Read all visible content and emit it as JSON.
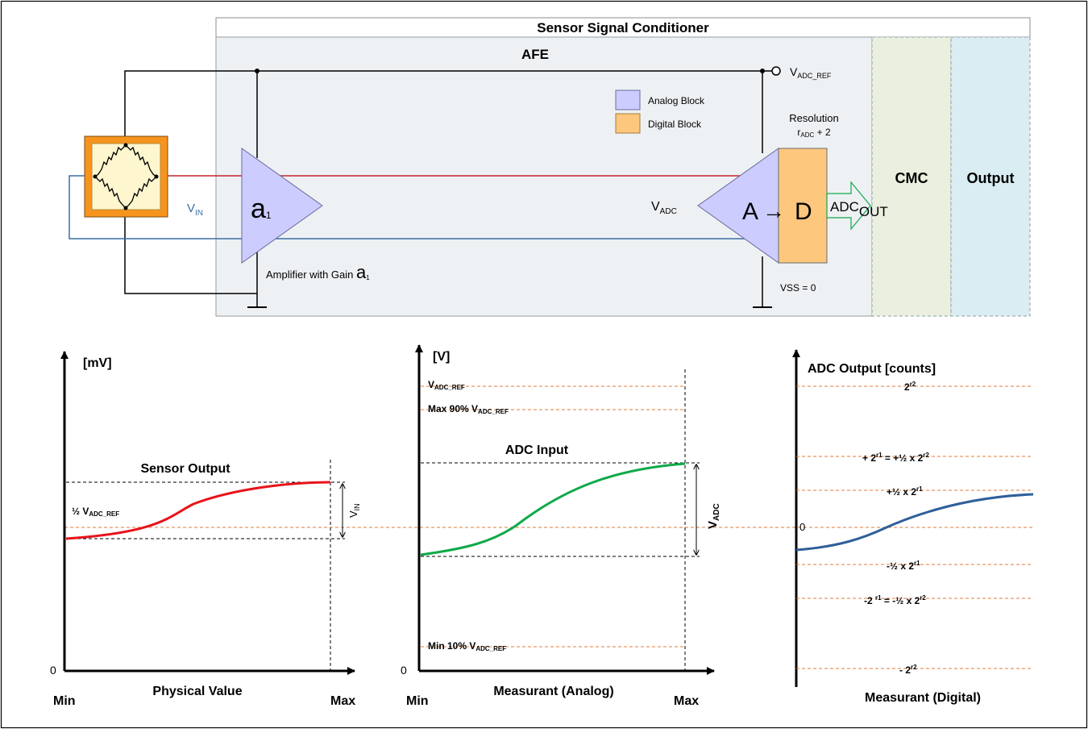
{
  "block_diagram": {
    "title": "Sensor Signal Conditioner",
    "afe_label": "AFE",
    "cmc_label": "CMC",
    "output_label": "Output",
    "vref": {
      "main": "V",
      "sub": "ADC_REF"
    },
    "legend": [
      {
        "label": "Analog Block",
        "color": "#ccccff"
      },
      {
        "label": "Digital Block",
        "color": "#fdc77e"
      }
    ],
    "resolution": {
      "line1": "Resolution",
      "r": "r",
      "sub": "ADC",
      "tail": " + 2"
    },
    "vin": {
      "main": "V",
      "sub": "IN"
    },
    "amp": {
      "main": "a",
      "sub": "1"
    },
    "amp_caption": {
      "text": "Amplifier with Gain ",
      "main": "a",
      "sub": "1"
    },
    "vadc": {
      "main": "V",
      "sub": "ADC"
    },
    "adc": {
      "a": "A",
      "arrow": "→",
      "d": "D"
    },
    "adc_out": {
      "main": "ADC",
      "sub": "OUT"
    },
    "vss": "VSS = 0"
  },
  "colors": {
    "analog": "#ccccff",
    "digital": "#fdc77e",
    "afe_bg": "#eef1f4",
    "cmc_bg": "#ebefdf",
    "output_bg": "#d9edf2",
    "sensor_orange": "#f7941d",
    "red_wire": "#c0262c",
    "blue_wire": "#3b6ea5",
    "sensor_curve": "#e8131b",
    "adc_curve": "#0fa94a",
    "digital_curve": "#2e5f9a",
    "guide": "#e07b39"
  },
  "graph1": {
    "y_label": "[mV]",
    "zero": "0",
    "x_min": "Min",
    "x_max": "Max",
    "x_title": "Physical Value",
    "curve_title": "Sensor Output",
    "half_ref": {
      "pre": "½ V",
      "sub": "ADC_REF"
    },
    "span": {
      "main": "V",
      "sub": "IN"
    }
  },
  "graph2": {
    "y_label": "[V]",
    "zero": "0",
    "x_min": "Min",
    "x_max": "Max",
    "x_title": "Measurant (Analog)",
    "curve_title": "ADC Input",
    "ref": {
      "pre": "V",
      "sub": "ADC_REF"
    },
    "max90": {
      "pre": "Max 90% V",
      "sub": "ADC_REF"
    },
    "min10": {
      "pre": "Min 10% V",
      "sub": "ADC_REF"
    },
    "span": {
      "main": "V",
      "sub": "ADC"
    }
  },
  "graph3": {
    "y_label": "ADC Output [counts]",
    "zero": "0",
    "x_title": "Measurant (Digital)",
    "top": {
      "base": "2",
      "sup": "r2"
    },
    "plus2r1": {
      "p1": "+ 2",
      "s1": "r1",
      "p2": " = +½ x 2",
      "s2": "r2"
    },
    "plushalf": {
      "p1": "+½ x 2",
      "s1": "r1"
    },
    "minushalf": {
      "p1": "-½ x 2",
      "s1": "r1"
    },
    "minus2r1": {
      "p1": "-2 ",
      "s1": "r1",
      "p2": " = -½ x 2",
      "s2": "r2"
    },
    "bottom": {
      "base": "- 2",
      "sup": "r2"
    }
  }
}
